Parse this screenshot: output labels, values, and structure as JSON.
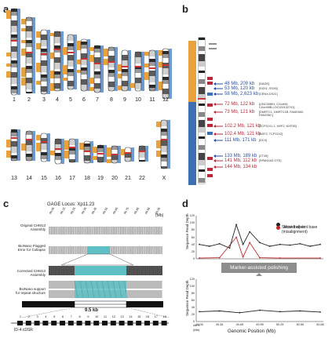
{
  "panels": {
    "a": "a",
    "b": "b",
    "c": "c",
    "d": "d"
  },
  "panel_a": {
    "chromosomes_row1": [
      "1",
      "2",
      "3",
      "4",
      "5",
      "6",
      "7",
      "8",
      "9",
      "10",
      "11",
      "12"
    ],
    "chromosomes_row2": [
      "13",
      "14",
      "15",
      "16",
      "17",
      "18",
      "19",
      "20",
      "21",
      "22",
      "X"
    ]
  },
  "panel_b": {
    "markers": [
      {
        "text": "48 Mb, 209 kb",
        "genes": "[GAGE]",
        "color": "#2a4ea0"
      },
      {
        "text": "53 Mb, 120 kb",
        "genes": "[SSX1, SSX8]",
        "color": "#2a4ea0"
      },
      {
        "text": "58 Mb, 2,623 kb",
        "genes": "[CENX-DXZ1]",
        "color": "#2a4ea0"
      },
      {
        "text": "72 Mb, 122 kb",
        "genes": "[LINC00891, CXorf49, CXorf49B,LOC100132741]",
        "color": "#b52a3a"
      },
      {
        "text": "73 Mb, 121 kb",
        "genes": "[DMRTC1, DMRTC1B, FAM236D, FAM236C]",
        "color": "#b52a3a"
      },
      {
        "text": "102.2 Mb, 121 kb",
        "genes": "[TCP11X1-1, NXF2, NXF2B]",
        "color": "#b52a3a"
      },
      {
        "text": "102.4 Mb, 121 kb",
        "genes": "[NXF2, TCP11X2]",
        "color": "#b52a3a"
      },
      {
        "text": "111 Mb, 171 kb",
        "genes": "[DCX]",
        "color": "#2a4ea0"
      },
      {
        "text": "133 Mb, 189 kb",
        "genes": "[CT45]",
        "color": "#2a4ea0"
      },
      {
        "text": "141 Mb, 112 kb",
        "genes": "[SPANXA2-OTE]",
        "color": "#b52a3a"
      },
      {
        "text": "144 Mb, 134 kb",
        "genes": "",
        "color": "#b52a3a"
      }
    ]
  },
  "panel_c": {
    "title": "GAGE Locus: Xp11.23",
    "mb_unit": "(Mb)",
    "top_ticks": [
      "49.05",
      "49.15",
      "49.25",
      "49.35",
      "49.45",
      "49.55",
      "49.65",
      "49.75",
      "49.85",
      "49.95",
      "50.05"
    ],
    "rows": [
      "Original CHM13\nAssembly",
      "BioNano Flagged\nError for Collapse",
      "Corrected CHM13\nAssembly",
      "BioNano support\nfor repeat structure"
    ],
    "scale_label": "9.5 kb",
    "bottom_ticks": [
      "1",
      "2",
      "3",
      "4",
      "5",
      "6",
      "7",
      "8",
      "9",
      "10",
      "11",
      "12",
      "13",
      "14",
      "15",
      "16",
      "17",
      "18"
    ],
    "bottom_left_label": "ID-4 cDSR"
  },
  "panel_d": {
    "legend": [
      {
        "label": "Most frequent base",
        "color": "#222222"
      },
      {
        "label": "Second allele\n(misalignment)",
        "color": "#c0282d"
      }
    ],
    "ylabel_top": "Sequence Read Depth",
    "ylabel_bottom": "Sequence Read Depth",
    "yticks_top": [
      "120",
      "100",
      "80",
      "60",
      "40",
      "20",
      "0"
    ],
    "yticks_bottom": [
      "120",
      "100",
      "80",
      "60",
      "40",
      "20",
      "0"
    ],
    "arrow_label": "Marker-assisted polishing",
    "xticks": [
      "49.05",
      "49.35",
      "49.65",
      "49.95",
      "50.25",
      "50.55",
      "50.85"
    ],
    "x_prefix": "chrX: (Mb)",
    "xlabel": "Genomic Position (Mb)"
  },
  "chart_data": [
    {
      "type": "line",
      "title": "",
      "ylabel": "Sequence Read Depth",
      "xlabel": "",
      "ylim": [
        0,
        120
      ],
      "series": [
        {
          "name": "Most frequent base",
          "x": [
            49.05,
            49.2,
            49.35,
            49.5,
            49.6,
            49.7,
            49.8,
            49.95,
            50.1,
            50.25,
            50.4,
            50.55,
            50.7,
            50.85
          ],
          "values": [
            40,
            35,
            42,
            30,
            95,
            40,
            75,
            45,
            35,
            40,
            38,
            42,
            35,
            40
          ]
        },
        {
          "name": "Second allele (misalignment)",
          "x": [
            49.05,
            49.35,
            49.6,
            49.7,
            49.8,
            49.95,
            50.25,
            50.85
          ],
          "values": [
            2,
            3,
            60,
            5,
            45,
            3,
            2,
            2
          ]
        }
      ]
    },
    {
      "type": "line",
      "title": "",
      "ylabel": "Sequence Read Depth",
      "xlabel": "Genomic Position (Mb)",
      "ylim": [
        0,
        120
      ],
      "series": [
        {
          "name": "Most frequent base",
          "x": [
            49.05,
            49.35,
            49.65,
            49.95,
            50.25,
            50.55,
            50.85
          ],
          "values": [
            28,
            30,
            25,
            32,
            28,
            30,
            27
          ]
        }
      ]
    }
  ]
}
